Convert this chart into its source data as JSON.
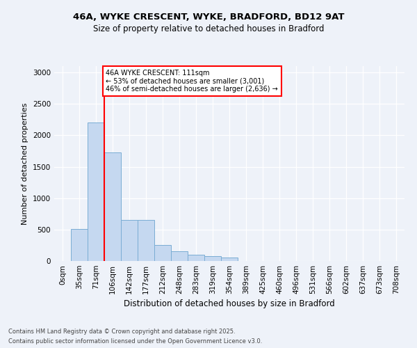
{
  "title_line1": "46A, WYKE CRESCENT, WYKE, BRADFORD, BD12 9AT",
  "title_line2": "Size of property relative to detached houses in Bradford",
  "xlabel": "Distribution of detached houses by size in Bradford",
  "ylabel": "Number of detached properties",
  "categories": [
    "0sqm",
    "35sqm",
    "71sqm",
    "106sqm",
    "142sqm",
    "177sqm",
    "212sqm",
    "248sqm",
    "283sqm",
    "319sqm",
    "354sqm",
    "389sqm",
    "425sqm",
    "460sqm",
    "496sqm",
    "531sqm",
    "566sqm",
    "602sqm",
    "637sqm",
    "673sqm",
    "708sqm"
  ],
  "bar_values": [
    0,
    510,
    2200,
    1730,
    650,
    650,
    260,
    155,
    100,
    75,
    55,
    0,
    0,
    0,
    0,
    0,
    0,
    0,
    0,
    0,
    0
  ],
  "bar_color": "#c5d8f0",
  "bar_edge_color": "#7aadd4",
  "annotation_line1": "46A WYKE CRESCENT: 111sqm",
  "annotation_line2": "← 53% of detached houses are smaller (3,001)",
  "annotation_line3": "46% of semi-detached houses are larger (2,636) →",
  "ylim": [
    0,
    3100
  ],
  "yticks": [
    0,
    500,
    1000,
    1500,
    2000,
    2500,
    3000
  ],
  "background_color": "#eef2f9",
  "plot_background": "#eef2f9",
  "footnote1": "Contains HM Land Registry data © Crown copyright and database right 2025.",
  "footnote2": "Contains public sector information licensed under the Open Government Licence v3.0."
}
